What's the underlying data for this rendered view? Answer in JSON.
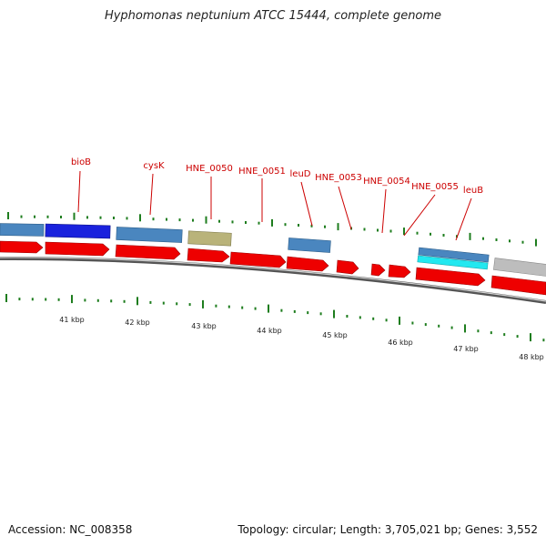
{
  "title": "Hyphomonas neptunium ATCC 15444, complete genome",
  "footer": {
    "accession": "Accession: NC_008358",
    "summary": "Topology: circular; Length: 3,705,021 bp; Genes: 3,552"
  },
  "colors": {
    "cds_red": "#ee0000",
    "steel_blue": "#4a86bf",
    "dark_blue": "#1a22dd",
    "olive": "#b9b37a",
    "cyan": "#22e8f0",
    "gray": "#bdbdbd",
    "tick_green": "#1e7d1e",
    "label_red": "#cc0000",
    "backbone": "#8a8a8a"
  },
  "kbp_labels": [
    "41 kbp",
    "42 kbp",
    "43 kbp",
    "44 kbp",
    "45 kbp",
    "46 kbp",
    "47 kbp",
    "48 kbp"
  ],
  "gene_labels": [
    "bioB",
    "cysK",
    "HNE_0050",
    "HNE_0051",
    "leuD",
    "HNE_0053",
    "HNE_0054",
    "HNE_0055",
    "leuB"
  ]
}
